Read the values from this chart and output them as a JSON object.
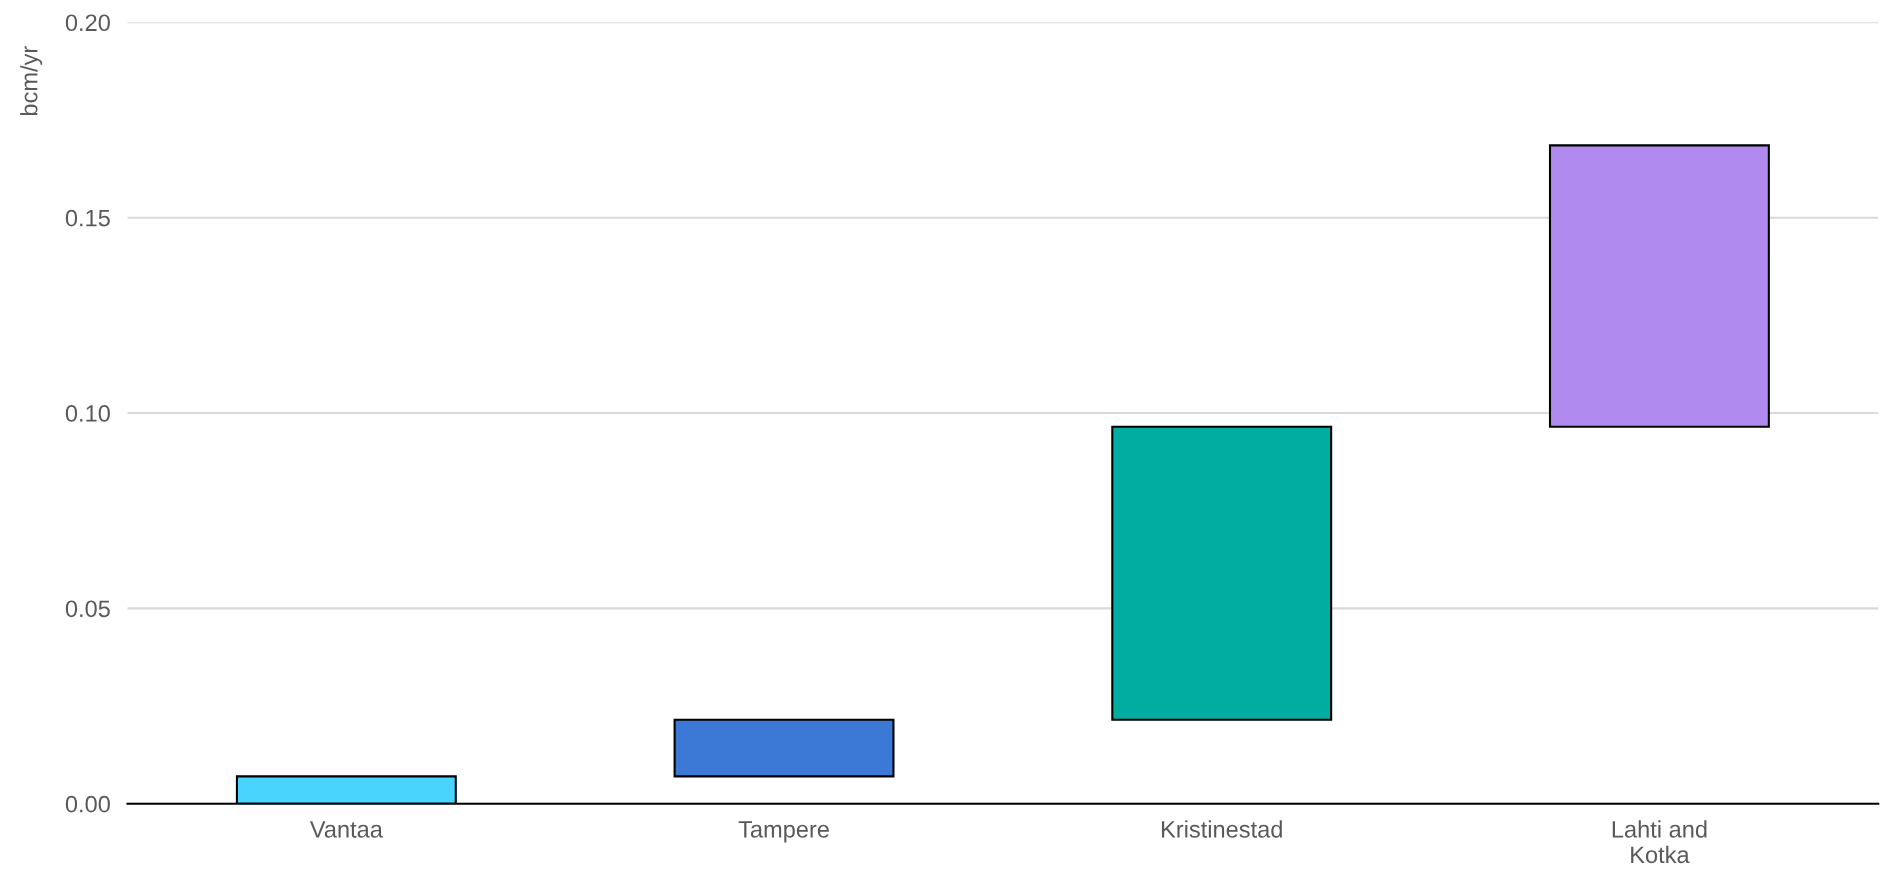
{
  "chart_data": {
    "type": "bar",
    "ylabel": "bcm/yr",
    "categories": [
      "Vantaa",
      "Tampere",
      "Kristinestad",
      "Lahti and\nKotka"
    ],
    "base": [
      0,
      0.007,
      0.0215,
      0.0965
    ],
    "values": [
      0.007,
      0.0145,
      0.075,
      0.072
    ],
    "colors": [
      "#48d4fd",
      "#3c78d6",
      "#00ada1",
      "#b18aef"
    ],
    "ylim": [
      0,
      0.2
    ],
    "yticks": [
      {
        "value": 0,
        "label": "0.00"
      },
      {
        "value": 0.05,
        "label": "0.05"
      },
      {
        "value": 0.1,
        "label": "0.10"
      },
      {
        "value": 0.15,
        "label": "0.15"
      },
      {
        "value": 0.2,
        "label": "0.20"
      }
    ],
    "grid": "y"
  }
}
